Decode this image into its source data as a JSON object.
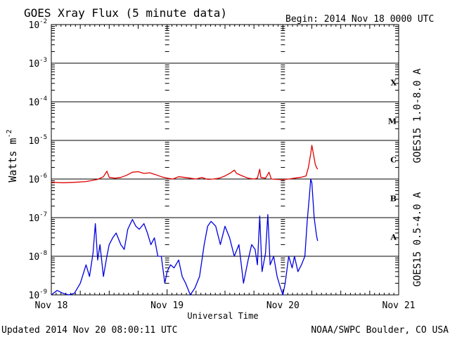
{
  "header": {
    "title": "GOES Xray Flux (5 minute data)",
    "begin_label": "Begin:  2014 Nov 18 0000 UTC"
  },
  "footer": {
    "updated": "Updated 2014 Nov 20 08:00:11 UTC",
    "credit": "NOAA/SWPC Boulder, CO USA"
  },
  "colors": {
    "long_channel": "#e00000",
    "short_channel": "#0000e0",
    "grid": "#000000",
    "background": "#ffffff"
  },
  "chart_data": {
    "type": "line",
    "title": "GOES Xray Flux (5 minute data)",
    "xlabel": "Universal Time",
    "ylabel": "Watts m",
    "ylabel_superscript": "-2",
    "yscale": "log",
    "ylim": [
      1e-09,
      0.01
    ],
    "xlim": [
      0,
      3
    ],
    "x_units": "days since 2014 Nov 18 0000 UTC",
    "x_ticks": [
      {
        "x": 0,
        "label": "Nov 18"
      },
      {
        "x": 1,
        "label": "Nov 19"
      },
      {
        "x": 2,
        "label": "Nov 20"
      },
      {
        "x": 3,
        "label": "Nov 21"
      }
    ],
    "y_ticks": [
      {
        "exp": -2,
        "base": "10",
        "sup": "-2"
      },
      {
        "exp": -3,
        "base": "10",
        "sup": "-3"
      },
      {
        "exp": -4,
        "base": "10",
        "sup": "-4"
      },
      {
        "exp": -5,
        "base": "10",
        "sup": "-5"
      },
      {
        "exp": -6,
        "base": "10",
        "sup": "-6"
      },
      {
        "exp": -7,
        "base": "10",
        "sup": "-7"
      },
      {
        "exp": -8,
        "base": "10",
        "sup": "-8"
      },
      {
        "exp": -9,
        "base": "10",
        "sup": "-9"
      }
    ],
    "flare_classes": [
      {
        "label": "X",
        "exp": -3.5
      },
      {
        "label": "M",
        "exp": -4.5
      },
      {
        "label": "C",
        "exp": -5.5
      },
      {
        "label": "B",
        "exp": -6.5
      },
      {
        "label": "A",
        "exp": -7.5
      }
    ],
    "grid": true,
    "series": [
      {
        "name": "GOES15 1.0-8.0 A",
        "color": "#e00000",
        "points": [
          [
            0.0,
            8.3e-07
          ],
          [
            0.1,
            8e-07
          ],
          [
            0.2,
            8.2e-07
          ],
          [
            0.3,
            8.6e-07
          ],
          [
            0.4,
            9.8e-07
          ],
          [
            0.45,
            1.15e-06
          ],
          [
            0.48,
            1.6e-06
          ],
          [
            0.5,
            1.1e-06
          ],
          [
            0.55,
            1.05e-06
          ],
          [
            0.6,
            1.1e-06
          ],
          [
            0.65,
            1.25e-06
          ],
          [
            0.7,
            1.5e-06
          ],
          [
            0.75,
            1.55e-06
          ],
          [
            0.8,
            1.4e-06
          ],
          [
            0.85,
            1.45e-06
          ],
          [
            0.9,
            1.3e-06
          ],
          [
            0.95,
            1.15e-06
          ],
          [
            1.0,
            1.05e-06
          ],
          [
            1.05,
            1e-06
          ],
          [
            1.1,
            1.15e-06
          ],
          [
            1.15,
            1.1e-06
          ],
          [
            1.2,
            1.05e-06
          ],
          [
            1.25,
            1e-06
          ],
          [
            1.3,
            1.1e-06
          ],
          [
            1.35,
            9.8e-07
          ],
          [
            1.4,
            1e-06
          ],
          [
            1.45,
            1.05e-06
          ],
          [
            1.5,
            1.2e-06
          ],
          [
            1.55,
            1.45e-06
          ],
          [
            1.58,
            1.7e-06
          ],
          [
            1.6,
            1.4e-06
          ],
          [
            1.65,
            1.2e-06
          ],
          [
            1.7,
            1.05e-06
          ],
          [
            1.75,
            1e-06
          ],
          [
            1.78,
            1.05e-06
          ],
          [
            1.8,
            1.8e-06
          ],
          [
            1.81,
            1.1e-06
          ],
          [
            1.85,
            1.05e-06
          ],
          [
            1.88,
            1.5e-06
          ],
          [
            1.9,
            1e-06
          ],
          [
            1.95,
            9.8e-07
          ],
          [
            2.0,
            9.6e-07
          ],
          [
            2.05,
            1e-06
          ],
          [
            2.1,
            1.05e-06
          ],
          [
            2.15,
            1.1e-06
          ],
          [
            2.2,
            1.2e-06
          ],
          [
            2.22,
            2e-06
          ],
          [
            2.24,
            4.5e-06
          ],
          [
            2.25,
            7.5e-06
          ],
          [
            2.26,
            5.2e-06
          ],
          [
            2.27,
            3.5e-06
          ],
          [
            2.28,
            2.4e-06
          ],
          [
            2.29,
            2e-06
          ],
          [
            2.3,
            1.8e-06
          ]
        ]
      },
      {
        "name": "GOES15 0.5-4.0 A",
        "color": "#0000e0",
        "points": [
          [
            0.0,
            1e-09
          ],
          [
            0.05,
            1.3e-09
          ],
          [
            0.1,
            1.1e-09
          ],
          [
            0.15,
            1e-09
          ],
          [
            0.2,
            1.1e-09
          ],
          [
            0.25,
            2e-09
          ],
          [
            0.3,
            6e-09
          ],
          [
            0.33,
            3e-09
          ],
          [
            0.36,
            1.2e-08
          ],
          [
            0.38,
            7e-08
          ],
          [
            0.4,
            8e-09
          ],
          [
            0.42,
            2e-08
          ],
          [
            0.45,
            3e-09
          ],
          [
            0.48,
            1e-08
          ],
          [
            0.5,
            2e-08
          ],
          [
            0.53,
            3e-08
          ],
          [
            0.56,
            4e-08
          ],
          [
            0.6,
            2e-08
          ],
          [
            0.63,
            1.5e-08
          ],
          [
            0.66,
            5e-08
          ],
          [
            0.7,
            9e-08
          ],
          [
            0.73,
            6e-08
          ],
          [
            0.76,
            5e-08
          ],
          [
            0.8,
            7e-08
          ],
          [
            0.83,
            4e-08
          ],
          [
            0.86,
            2e-08
          ],
          [
            0.89,
            3e-08
          ],
          [
            0.92,
            1e-08
          ],
          [
            0.95,
            1e-08
          ],
          [
            0.98,
            2e-09
          ],
          [
            1.0,
            4e-09
          ],
          [
            1.03,
            6e-09
          ],
          [
            1.06,
            5e-09
          ],
          [
            1.1,
            8e-09
          ],
          [
            1.13,
            3e-09
          ],
          [
            1.16,
            2e-09
          ],
          [
            1.2,
            1e-09
          ],
          [
            1.24,
            1.5e-09
          ],
          [
            1.28,
            3e-09
          ],
          [
            1.32,
            2e-08
          ],
          [
            1.35,
            6e-08
          ],
          [
            1.38,
            8e-08
          ],
          [
            1.42,
            6e-08
          ],
          [
            1.46,
            2e-08
          ],
          [
            1.5,
            6e-08
          ],
          [
            1.54,
            3e-08
          ],
          [
            1.58,
            1e-08
          ],
          [
            1.62,
            2e-08
          ],
          [
            1.66,
            2e-09
          ],
          [
            1.7,
            8e-09
          ],
          [
            1.73,
            2e-08
          ],
          [
            1.76,
            1.5e-08
          ],
          [
            1.78,
            6e-09
          ],
          [
            1.8,
            1.1e-07
          ],
          [
            1.82,
            4e-09
          ],
          [
            1.85,
            1.2e-08
          ],
          [
            1.87,
            1.2e-07
          ],
          [
            1.89,
            6e-09
          ],
          [
            1.92,
            1e-08
          ],
          [
            1.95,
            3e-09
          ],
          [
            1.98,
            1.5e-09
          ],
          [
            2.0,
            1e-09
          ],
          [
            2.02,
            2e-09
          ],
          [
            2.05,
            1e-08
          ],
          [
            2.08,
            5e-09
          ],
          [
            2.1,
            1e-08
          ],
          [
            2.13,
            4e-09
          ],
          [
            2.16,
            6e-09
          ],
          [
            2.19,
            1e-08
          ],
          [
            2.21,
            8e-08
          ],
          [
            2.23,
            4e-07
          ],
          [
            2.24,
            1e-06
          ],
          [
            2.25,
            8e-07
          ],
          [
            2.26,
            3e-07
          ],
          [
            2.27,
            1e-07
          ],
          [
            2.28,
            6e-08
          ],
          [
            2.29,
            3.5e-08
          ],
          [
            2.3,
            2.5e-08
          ]
        ]
      }
    ]
  }
}
